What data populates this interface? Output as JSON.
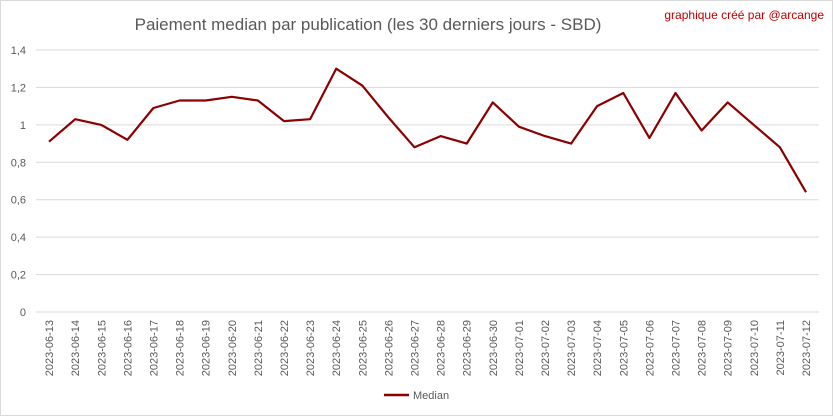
{
  "chart_data": {
    "type": "line",
    "title": "Paiement median par publication (les 30 derniers jours - SBD)",
    "credit": "graphique créé par @arcange",
    "x": [
      "2023-06-13",
      "2023-06-14",
      "2023-06-15",
      "2023-06-16",
      "2023-06-17",
      "2023-06-18",
      "2023-06-19",
      "2023-06-20",
      "2023-06-21",
      "2023-06-22",
      "2023-06-23",
      "2023-06-24",
      "2023-06-25",
      "2023-06-26",
      "2023-06-27",
      "2023-06-28",
      "2023-06-29",
      "2023-06-30",
      "2023-07-01",
      "2023-07-02",
      "2023-07-03",
      "2023-07-04",
      "2023-07-05",
      "2023-07-06",
      "2023-07-07",
      "2023-07-08",
      "2023-07-09",
      "2023-07-10",
      "2023-07-11",
      "2023-07-12"
    ],
    "series": [
      {
        "name": "Median",
        "color": "#8b0000",
        "values": [
          0.91,
          1.03,
          1.0,
          0.92,
          1.09,
          1.13,
          1.13,
          1.15,
          1.13,
          1.02,
          1.03,
          1.3,
          1.21,
          1.04,
          0.88,
          0.94,
          0.9,
          1.12,
          0.99,
          0.94,
          0.9,
          1.1,
          1.17,
          0.93,
          1.17,
          0.97,
          1.12,
          1.0,
          0.88,
          0.64
        ]
      }
    ],
    "yticks": [
      "0",
      "0,2",
      "0,4",
      "0,6",
      "0,8",
      "1",
      "1,2",
      "1,4"
    ],
    "ylim": [
      0,
      1.4
    ],
    "grid": true,
    "legend_position": "bottom"
  }
}
